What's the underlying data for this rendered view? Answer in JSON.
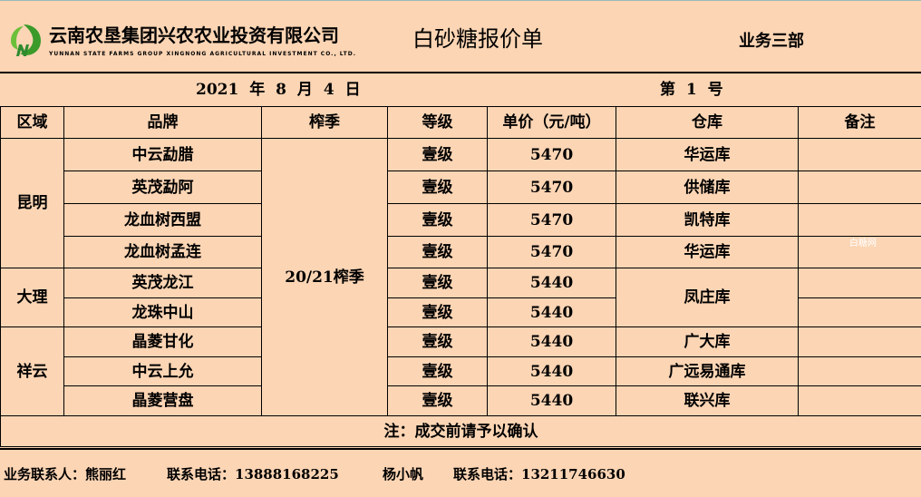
{
  "header": {
    "company_cn": "云南农垦集团兴农农业投资有限公司",
    "company_en": "YUNNAN STATE FARMS GROUP XINGNONG AGRICULTURAL INVESTMENT CO., LTD.",
    "title": "白砂糖报价单",
    "department": "业务三部",
    "brand_color": "#3a9a2a"
  },
  "date": "2021 年 8 月 4 日",
  "number": "第 1 号",
  "columns": [
    "区域",
    "品牌",
    "榨季",
    "等级",
    "单价（元/吨）",
    "仓库",
    "备注"
  ],
  "season": "20/21榨季",
  "regions": [
    "昆明",
    "大理",
    "祥云"
  ],
  "rows": [
    {
      "brand": "中云勐腊",
      "grade": "壹级",
      "price": "5470",
      "warehouse": "华运库"
    },
    {
      "brand": "英茂勐阿",
      "grade": "壹级",
      "price": "5470",
      "warehouse": "供储库"
    },
    {
      "brand": "龙血树西盟",
      "grade": "壹级",
      "price": "5470",
      "warehouse": "凯特库"
    },
    {
      "brand": "龙血树孟连",
      "grade": "壹级",
      "price": "5470",
      "warehouse": "华运库"
    },
    {
      "brand": "英茂龙江",
      "grade": "壹级",
      "price": "5440",
      "warehouse": "凤庄库"
    },
    {
      "brand": "龙珠中山",
      "grade": "壹级",
      "price": "5440"
    },
    {
      "brand": "晶菱甘化",
      "grade": "壹级",
      "price": "5440",
      "warehouse": "广大库"
    },
    {
      "brand": "中云上允",
      "grade": "壹级",
      "price": "5440",
      "warehouse": "广远易通库"
    },
    {
      "brand": "晶菱营盘",
      "grade": "壹级",
      "price": "5440",
      "warehouse": "联兴库"
    }
  ],
  "note": "注：成交前请予以确认",
  "footer": {
    "contact1_label": "业务联系人：熊丽红",
    "phone1": "联系电话：13888168225",
    "contact2": "杨小帆",
    "phone2": "联系电话：13211746630"
  },
  "watermark": "白糖网"
}
